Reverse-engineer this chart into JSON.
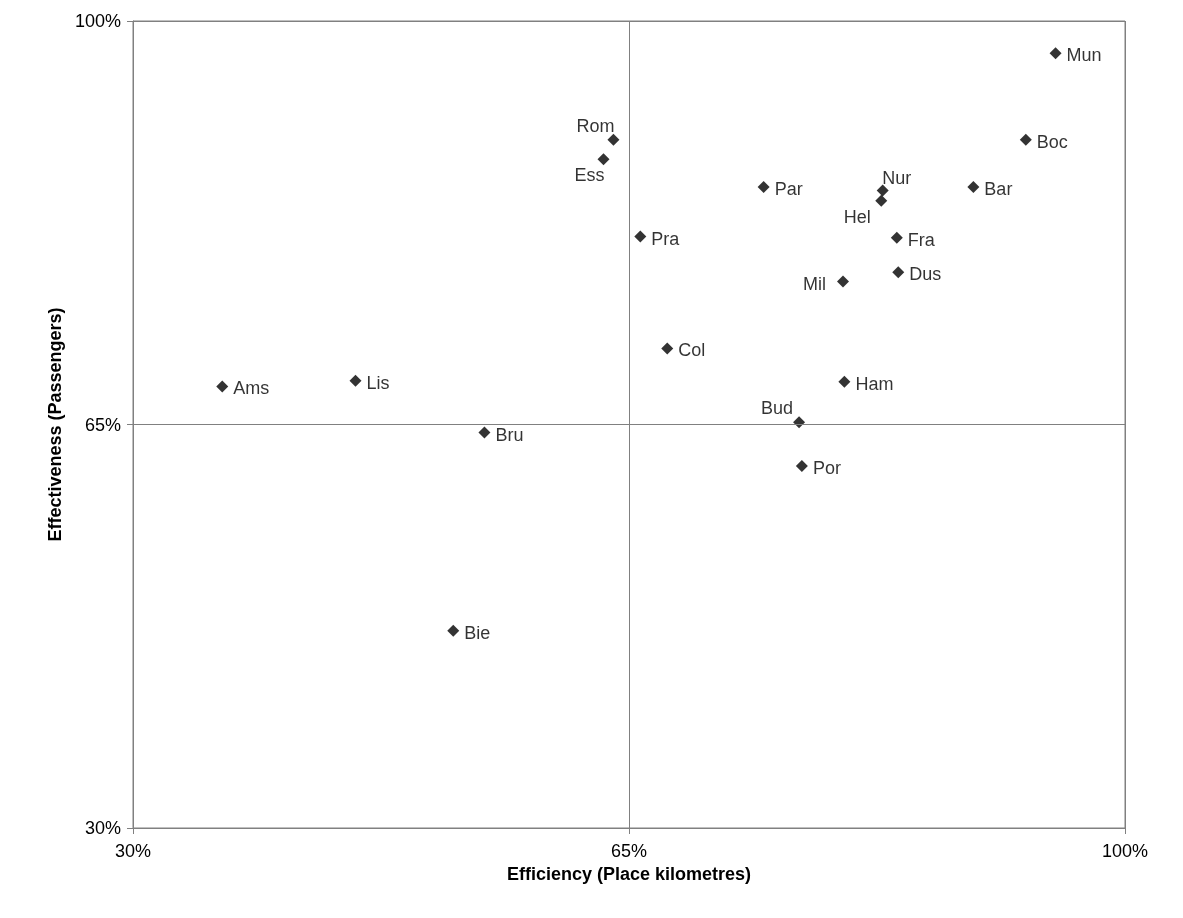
{
  "chart_data": {
    "type": "scatter",
    "xlabel": "Efficiency (Place kilometres)",
    "ylabel": "Effectiveness (Passengers)",
    "xlim": [
      30,
      100
    ],
    "ylim": [
      30,
      100
    ],
    "xticks": [
      {
        "value": 30,
        "label": "30%"
      },
      {
        "value": 65,
        "label": "65%"
      },
      {
        "value": 100,
        "label": "100%"
      }
    ],
    "yticks": [
      {
        "value": 30,
        "label": "30%"
      },
      {
        "value": 65,
        "label": "65%"
      },
      {
        "value": 100,
        "label": "100%"
      }
    ],
    "grid": true,
    "marker": "diamond",
    "series": [
      {
        "color": "#000000",
        "x": [
          95.1,
          93.0,
          89.3,
          82.9,
          82.8,
          83.9,
          84.0,
          80.1,
          74.5,
          63.9,
          63.2,
          65.8,
          67.7,
          80.2,
          77.0,
          77.2,
          36.3,
          45.7,
          54.8,
          52.6
        ],
        "values": [
          97.2,
          89.7,
          85.6,
          85.3,
          84.4,
          81.2,
          78.2,
          77.4,
          85.6,
          89.7,
          88.0,
          81.3,
          71.6,
          68.7,
          65.2,
          61.4,
          68.3,
          68.8,
          64.3,
          47.1
        ]
      }
    ],
    "annotations": [
      {
        "text": "Mun",
        "x": 95.1,
        "y": 97.2
      },
      {
        "text": "Boc",
        "x": 93.0,
        "y": 89.7
      },
      {
        "text": "Bar",
        "x": 89.3,
        "y": 85.6
      },
      {
        "text": "Nur",
        "x": 82.9,
        "y": 85.3
      },
      {
        "text": "Hel",
        "x": 82.8,
        "y": 84.4
      },
      {
        "text": "Fra",
        "x": 83.9,
        "y": 81.2
      },
      {
        "text": "Dus",
        "x": 84.0,
        "y": 78.2
      },
      {
        "text": "Mil",
        "x": 80.1,
        "y": 77.4
      },
      {
        "text": "Par",
        "x": 74.5,
        "y": 85.6
      },
      {
        "text": "Rom",
        "x": 63.9,
        "y": 89.7
      },
      {
        "text": "Ess",
        "x": 63.2,
        "y": 88.0
      },
      {
        "text": "Pra",
        "x": 65.8,
        "y": 81.3
      },
      {
        "text": "Col",
        "x": 67.7,
        "y": 71.6
      },
      {
        "text": "Ham",
        "x": 80.2,
        "y": 68.7
      },
      {
        "text": "Bud",
        "x": 77.0,
        "y": 65.2
      },
      {
        "text": "Por",
        "x": 77.2,
        "y": 61.4
      },
      {
        "text": "Ams",
        "x": 36.3,
        "y": 68.3
      },
      {
        "text": "Lis",
        "x": 45.7,
        "y": 68.8
      },
      {
        "text": "Bru",
        "x": 54.8,
        "y": 64.3
      },
      {
        "text": "Bie",
        "x": 52.6,
        "y": 47.1
      }
    ]
  }
}
